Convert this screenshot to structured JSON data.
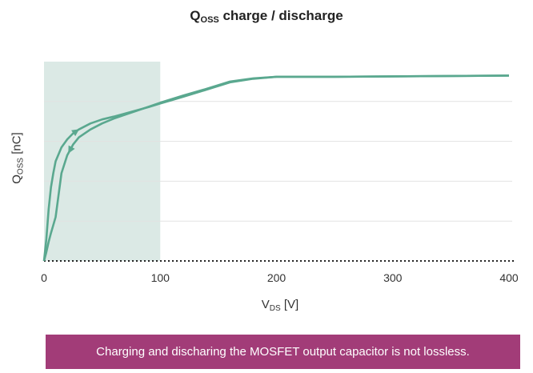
{
  "chart_data": {
    "type": "line",
    "title": {
      "main": "Q",
      "main_sub": "OSS",
      "rest": " charge / discharge"
    },
    "xlabel": {
      "main": "V",
      "sub": "DS",
      "rest": " [V]"
    },
    "ylabel": {
      "main": "Q",
      "sub": "OSS",
      "rest": " [nC]"
    },
    "xlim": [
      0,
      400
    ],
    "ylim": [
      0,
      5
    ],
    "xticks": [
      "0",
      "100",
      "200",
      "300",
      "400"
    ],
    "grid": "horizontal",
    "shaded_region": {
      "x_from": 0,
      "x_to": 100,
      "color": "#dbe9e5"
    },
    "line_color": "#5aa88f",
    "series": [
      {
        "direction": "charge",
        "x": [
          0,
          2,
          4,
          6,
          8,
          10,
          15,
          20,
          25,
          30,
          40,
          50,
          60,
          70,
          80,
          90,
          100,
          120,
          140,
          160,
          180,
          200,
          250,
          300,
          350,
          400
        ],
        "y": [
          0,
          0.55,
          1.3,
          1.85,
          2.2,
          2.5,
          2.85,
          3.05,
          3.2,
          3.3,
          3.45,
          3.55,
          3.62,
          3.7,
          3.78,
          3.86,
          3.95,
          4.12,
          4.3,
          4.48,
          4.57,
          4.62,
          4.62,
          4.63,
          4.64,
          4.65
        ]
      },
      {
        "direction": "discharge",
        "x": [
          400,
          350,
          300,
          250,
          200,
          180,
          160,
          140,
          120,
          100,
          90,
          80,
          70,
          60,
          50,
          40,
          30,
          25,
          20,
          15,
          10,
          8,
          6,
          4,
          2,
          0
        ],
        "y": [
          4.65,
          4.64,
          4.63,
          4.62,
          4.62,
          4.58,
          4.5,
          4.32,
          4.15,
          3.97,
          3.87,
          3.77,
          3.67,
          3.57,
          3.45,
          3.3,
          3.1,
          2.92,
          2.65,
          2.2,
          1.1,
          0.9,
          0.7,
          0.48,
          0.22,
          0
        ]
      }
    ]
  },
  "caption": "Charging and discharing the MOSFET output capacitor is not lossless."
}
